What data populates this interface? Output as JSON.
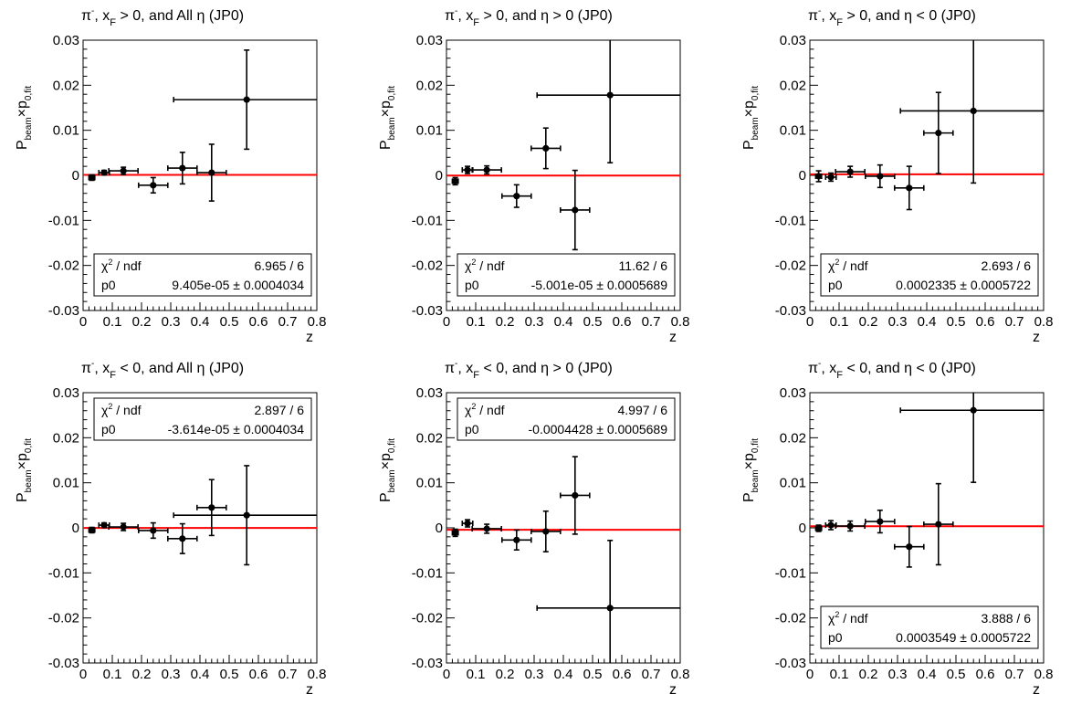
{
  "colors": {
    "fit_line": "#ff0000",
    "frame": "#000000",
    "marker": "#000000",
    "background": "#ffffff"
  },
  "chart_data": [
    {
      "type": "scatter",
      "title": {
        "particle": "π",
        "charge": "-",
        "xf_sub": "F",
        "cond1": ", x",
        "cond2": " > 0, and All η (JP0)"
      },
      "xlabel": "z",
      "ylabel": {
        "main": "P",
        "sub1": "beam",
        "times": "×p",
        "sub2": "0,fit"
      },
      "xlim": [
        0,
        0.8
      ],
      "ylim": [
        -0.03,
        0.03
      ],
      "xticks": [
        "0",
        "0.1",
        "0.2",
        "0.3",
        "0.4",
        "0.5",
        "0.6",
        "0.7",
        "0.8"
      ],
      "yticks": [
        "-0.03",
        "-0.02",
        "-0.01",
        "0",
        "0.01",
        "0.02",
        "0.03"
      ],
      "points": [
        {
          "x": 0.03,
          "y": -0.0005,
          "xerr": 0.01,
          "yerr": 0.0006
        },
        {
          "x": 0.072,
          "y": 0.0006,
          "xerr": 0.018,
          "yerr": 0.0005
        },
        {
          "x": 0.138,
          "y": 0.001,
          "xerr": 0.05,
          "yerr": 0.0008
        },
        {
          "x": 0.24,
          "y": -0.0022,
          "xerr": 0.05,
          "yerr": 0.0017
        },
        {
          "x": 0.34,
          "y": 0.0016,
          "xerr": 0.05,
          "yerr": 0.0035
        },
        {
          "x": 0.44,
          "y": 0.0006,
          "xerr": 0.05,
          "yerr": 0.0063
        },
        {
          "x": 0.56,
          "y": 0.0168,
          "xerr": 0.25,
          "yerr": 0.011
        }
      ],
      "fit": {
        "p0": 9.405e-05
      },
      "stats": {
        "position": "bottom",
        "chi2_label": "χ",
        "chi2_sup": "2",
        "ndf_label": " / ndf",
        "chi2_value": "6.965 / 6",
        "p0_label": "p0",
        "p0_value": "9.405e-05 ± 0.0004034"
      }
    },
    {
      "type": "scatter",
      "title": {
        "particle": "π",
        "charge": "-",
        "xf_sub": "F",
        "cond1": ", x",
        "cond2": " > 0, and η > 0 (JP0)"
      },
      "xlabel": "z",
      "ylabel": {
        "main": "P",
        "sub1": "beam",
        "times": "×p",
        "sub2": "0,fit"
      },
      "xlim": [
        0,
        0.8
      ],
      "ylim": [
        -0.03,
        0.03
      ],
      "xticks": [
        "0",
        "0.1",
        "0.2",
        "0.3",
        "0.4",
        "0.5",
        "0.6",
        "0.7",
        "0.8"
      ],
      "yticks": [
        "-0.03",
        "-0.02",
        "-0.01",
        "0",
        "0.01",
        "0.02",
        "0.03"
      ],
      "points": [
        {
          "x": 0.03,
          "y": -0.0013,
          "xerr": 0.01,
          "yerr": 0.0008
        },
        {
          "x": 0.072,
          "y": 0.0012,
          "xerr": 0.018,
          "yerr": 0.0008
        },
        {
          "x": 0.138,
          "y": 0.0012,
          "xerr": 0.05,
          "yerr": 0.0009
        },
        {
          "x": 0.24,
          "y": -0.0046,
          "xerr": 0.05,
          "yerr": 0.0025
        },
        {
          "x": 0.34,
          "y": 0.006,
          "xerr": 0.05,
          "yerr": 0.0045
        },
        {
          "x": 0.44,
          "y": -0.0077,
          "xerr": 0.05,
          "yerr": 0.0088
        },
        {
          "x": 0.56,
          "y": 0.0178,
          "xerr": 0.25,
          "yerr": 0.015
        }
      ],
      "fit": {
        "p0": -5.001e-05
      },
      "stats": {
        "position": "bottom",
        "chi2_label": "χ",
        "chi2_sup": "2",
        "ndf_label": " / ndf",
        "chi2_value": "11.62 / 6",
        "p0_label": "p0",
        "p0_value": "-5.001e-05 ± 0.0005689"
      }
    },
    {
      "type": "scatter",
      "title": {
        "particle": "π",
        "charge": "-",
        "xf_sub": "F",
        "cond1": ", x",
        "cond2": " > 0, and η < 0 (JP0)"
      },
      "xlabel": "z",
      "ylabel": {
        "main": "P",
        "sub1": "beam",
        "times": "×p",
        "sub2": "0,fit"
      },
      "xlim": [
        0,
        0.8
      ],
      "ylim": [
        -0.03,
        0.03
      ],
      "xticks": [
        "0",
        "0.1",
        "0.2",
        "0.3",
        "0.4",
        "0.5",
        "0.6",
        "0.7",
        "0.8"
      ],
      "yticks": [
        "-0.03",
        "-0.02",
        "-0.01",
        "0",
        "0.01",
        "0.02",
        "0.03"
      ],
      "points": [
        {
          "x": 0.03,
          "y": -0.0002,
          "xerr": 0.01,
          "yerr": 0.0012
        },
        {
          "x": 0.072,
          "y": -0.0004,
          "xerr": 0.018,
          "yerr": 0.0009
        },
        {
          "x": 0.138,
          "y": 0.0008,
          "xerr": 0.05,
          "yerr": 0.0012
        },
        {
          "x": 0.24,
          "y": -0.0002,
          "xerr": 0.05,
          "yerr": 0.0025
        },
        {
          "x": 0.34,
          "y": -0.0028,
          "xerr": 0.05,
          "yerr": 0.0048
        },
        {
          "x": 0.44,
          "y": 0.0094,
          "xerr": 0.05,
          "yerr": 0.009
        },
        {
          "x": 0.56,
          "y": 0.0143,
          "xerr": 0.25,
          "yerr": 0.016
        }
      ],
      "fit": {
        "p0": 0.0002335
      },
      "stats": {
        "position": "bottom",
        "chi2_label": "χ",
        "chi2_sup": "2",
        "ndf_label": " / ndf",
        "chi2_value": "2.693 / 6",
        "p0_label": "p0",
        "p0_value": "0.0002335 ± 0.0005722"
      }
    },
    {
      "type": "scatter",
      "title": {
        "particle": "π",
        "charge": "-",
        "xf_sub": "F",
        "cond1": ", x",
        "cond2": " < 0, and All η (JP0)"
      },
      "xlabel": "z",
      "ylabel": {
        "main": "P",
        "sub1": "beam",
        "times": "×p",
        "sub2": "0,fit"
      },
      "xlim": [
        0,
        0.8
      ],
      "ylim": [
        -0.03,
        0.03
      ],
      "xticks": [
        "0",
        "0.1",
        "0.2",
        "0.3",
        "0.4",
        "0.5",
        "0.6",
        "0.7",
        "0.8"
      ],
      "yticks": [
        "-0.03",
        "-0.02",
        "-0.01",
        "0",
        "0.01",
        "0.02",
        "0.03"
      ],
      "points": [
        {
          "x": 0.03,
          "y": -0.0005,
          "xerr": 0.01,
          "yerr": 0.0006
        },
        {
          "x": 0.072,
          "y": 0.0006,
          "xerr": 0.018,
          "yerr": 0.0005
        },
        {
          "x": 0.138,
          "y": 0.0002,
          "xerr": 0.05,
          "yerr": 0.0008
        },
        {
          "x": 0.24,
          "y": -0.0006,
          "xerr": 0.05,
          "yerr": 0.0017
        },
        {
          "x": 0.34,
          "y": -0.0024,
          "xerr": 0.05,
          "yerr": 0.0033
        },
        {
          "x": 0.44,
          "y": 0.0045,
          "xerr": 0.05,
          "yerr": 0.0062
        },
        {
          "x": 0.56,
          "y": 0.0028,
          "xerr": 0.25,
          "yerr": 0.011
        }
      ],
      "fit": {
        "p0": -3.614e-05
      },
      "stats": {
        "position": "top",
        "chi2_label": "χ",
        "chi2_sup": "2",
        "ndf_label": " / ndf",
        "chi2_value": "2.897 / 6",
        "p0_label": "p0",
        "p0_value": "-3.614e-05 ± 0.0004034"
      }
    },
    {
      "type": "scatter",
      "title": {
        "particle": "π",
        "charge": "-",
        "xf_sub": "F",
        "cond1": ", x",
        "cond2": " < 0, and η > 0 (JP0)"
      },
      "xlabel": "z",
      "ylabel": {
        "main": "P",
        "sub1": "beam",
        "times": "×p",
        "sub2": "0,fit"
      },
      "xlim": [
        0,
        0.8
      ],
      "ylim": [
        -0.03,
        0.03
      ],
      "xticks": [
        "0",
        "0.1",
        "0.2",
        "0.3",
        "0.4",
        "0.5",
        "0.6",
        "0.7",
        "0.8"
      ],
      "yticks": [
        "-0.03",
        "-0.02",
        "-0.01",
        "0",
        "0.01",
        "0.02",
        "0.03"
      ],
      "points": [
        {
          "x": 0.03,
          "y": -0.0011,
          "xerr": 0.01,
          "yerr": 0.0008
        },
        {
          "x": 0.072,
          "y": 0.001,
          "xerr": 0.018,
          "yerr": 0.0008
        },
        {
          "x": 0.138,
          "y": -0.0002,
          "xerr": 0.05,
          "yerr": 0.001
        },
        {
          "x": 0.24,
          "y": -0.0027,
          "xerr": 0.05,
          "yerr": 0.0022
        },
        {
          "x": 0.34,
          "y": -0.0008,
          "xerr": 0.05,
          "yerr": 0.0045
        },
        {
          "x": 0.44,
          "y": 0.0072,
          "xerr": 0.05,
          "yerr": 0.0086
        },
        {
          "x": 0.56,
          "y": -0.0178,
          "xerr": 0.25,
          "yerr": 0.015
        }
      ],
      "fit": {
        "p0": -0.0004428
      },
      "stats": {
        "position": "top",
        "chi2_label": "χ",
        "chi2_sup": "2",
        "ndf_label": " / ndf",
        "chi2_value": "4.997 / 6",
        "p0_label": "p0",
        "p0_value": "-0.0004428 ± 0.0005689"
      }
    },
    {
      "type": "scatter",
      "title": {
        "particle": "π",
        "charge": "-",
        "xf_sub": "F",
        "cond1": ", x",
        "cond2": " < 0, and η < 0 (JP0)"
      },
      "xlabel": "z",
      "ylabel": {
        "main": "P",
        "sub1": "beam",
        "times": "×p",
        "sub2": "0,fit"
      },
      "xlim": [
        0,
        0.8
      ],
      "ylim": [
        -0.03,
        0.03
      ],
      "xticks": [
        "0",
        "0.1",
        "0.2",
        "0.3",
        "0.4",
        "0.5",
        "0.6",
        "0.7",
        "0.8"
      ],
      "yticks": [
        "-0.03",
        "-0.02",
        "-0.01",
        "0",
        "0.01",
        "0.02",
        "0.03"
      ],
      "points": [
        {
          "x": 0.03,
          "y": -0.0001,
          "xerr": 0.01,
          "yerr": 0.0007
        },
        {
          "x": 0.072,
          "y": 0.0006,
          "xerr": 0.018,
          "yerr": 0.001
        },
        {
          "x": 0.138,
          "y": 0.0004,
          "xerr": 0.05,
          "yerr": 0.0011
        },
        {
          "x": 0.24,
          "y": 0.0014,
          "xerr": 0.05,
          "yerr": 0.0025
        },
        {
          "x": 0.34,
          "y": -0.0042,
          "xerr": 0.05,
          "yerr": 0.0045
        },
        {
          "x": 0.44,
          "y": 0.0008,
          "xerr": 0.05,
          "yerr": 0.009
        },
        {
          "x": 0.56,
          "y": 0.0261,
          "xerr": 0.25,
          "yerr": 0.016
        }
      ],
      "fit": {
        "p0": 0.0003549
      },
      "stats": {
        "position": "bottom",
        "chi2_label": "χ",
        "chi2_sup": "2",
        "ndf_label": " / ndf",
        "chi2_value": "3.888 / 6",
        "p0_label": "p0",
        "p0_value": "0.0003549 ± 0.0005722"
      }
    }
  ]
}
